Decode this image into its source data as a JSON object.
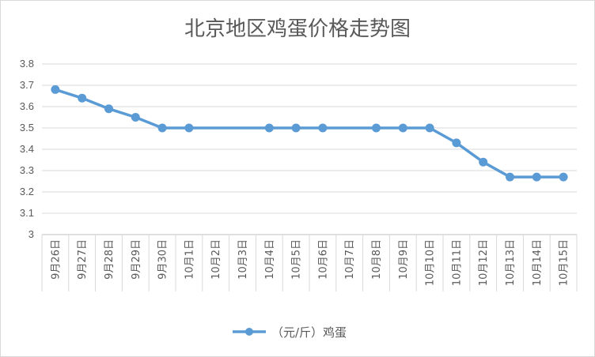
{
  "chart_data": {
    "type": "line",
    "title": "北京地区鸡蛋价格走势图",
    "categories": [
      "9月26日",
      "9月27日",
      "9月28日",
      "9月29日",
      "9月30日",
      "10月1日",
      "10月2日",
      "10月3日",
      "10月4日",
      "10月5日",
      "10月6日",
      "10月7日",
      "10月8日",
      "10月9日",
      "10月10日",
      "10月11日",
      "10月12日",
      "10月13日",
      "10月14日",
      "10月15日"
    ],
    "series": [
      {
        "name": "（元/斤）鸡蛋",
        "color": "#5b9bd5",
        "values": [
          3.68,
          3.64,
          3.59,
          3.55,
          3.5,
          3.5,
          null,
          null,
          3.5,
          3.5,
          3.5,
          null,
          3.5,
          3.5,
          3.5,
          3.43,
          3.34,
          3.27,
          3.27,
          3.27
        ]
      }
    ],
    "ylim": [
      3.0,
      3.8
    ],
    "yticks": [
      "3",
      "3.1",
      "3.2",
      "3.3",
      "3.4",
      "3.5",
      "3.6",
      "3.7",
      "3.8"
    ],
    "grid": true,
    "legend_position": "bottom",
    "gridline_color": "#d9d9d9",
    "axis_color": "#bfbfbf"
  }
}
